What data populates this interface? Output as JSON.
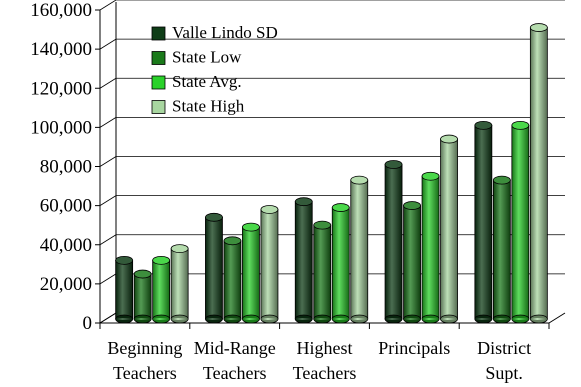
{
  "chart_data": {
    "type": "bar",
    "title": "",
    "xlabel": "",
    "ylabel": "",
    "categories": [
      [
        "Beginning",
        "Teachers"
      ],
      [
        "Mid-Range",
        "Teachers"
      ],
      [
        "Highest",
        "Teachers"
      ],
      [
        "Principals"
      ],
      [
        "District",
        "Supt."
      ]
    ],
    "series": [
      {
        "name": "Valle Lindo SD",
        "color": "#0f3d17",
        "values": [
          31000,
          53000,
          61000,
          80000,
          100000
        ]
      },
      {
        "name": "State Low",
        "color": "#1b7a1b",
        "values": [
          24000,
          41000,
          49000,
          59000,
          72000
        ]
      },
      {
        "name": "State Avg.",
        "color": "#2ad12a",
        "values": [
          31000,
          48000,
          58000,
          74000,
          100000
        ]
      },
      {
        "name": "State High",
        "color": "#a8d6a0",
        "values": [
          37000,
          57000,
          72000,
          93000,
          150000
        ]
      }
    ],
    "ylim": [
      0,
      160000
    ],
    "yticks": [
      "0",
      "20,000",
      "40,000",
      "60,000",
      "80,000",
      "100,000",
      "120,000",
      "140,000",
      "160,000"
    ],
    "grid": true,
    "legend_position": "top-left",
    "style": "3d-cylinder"
  }
}
